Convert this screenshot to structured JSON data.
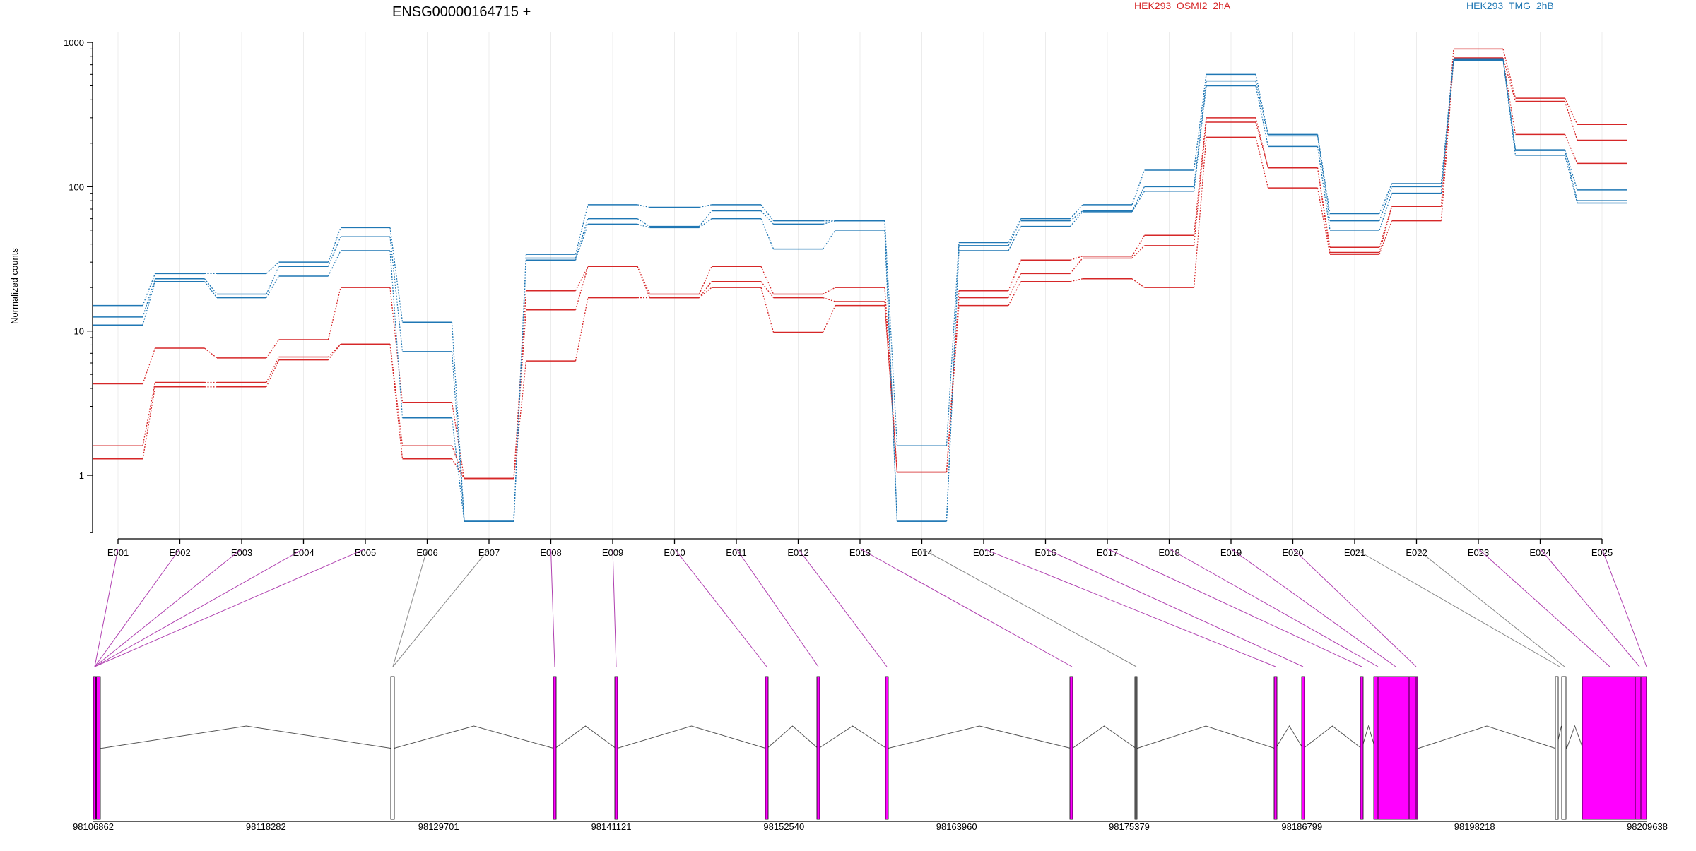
{
  "title": "ENSG00000164715 +",
  "legend": [
    {
      "label": "HEK293_OSMI2_2hA",
      "color": "#d62728"
    },
    {
      "label": "HEK293_TMG_2hB",
      "color": "#1f77b4"
    }
  ],
  "colors": {
    "highlight": "#ff00ff",
    "highlight_edge": "#b000b0",
    "connector_sig": "#b040b0",
    "connector": "#888888"
  },
  "chart_data": {
    "type": "line",
    "ylabel": "Normalized counts",
    "yscale": "log",
    "ylim": [
      0.4,
      1000
    ],
    "yticks": [
      {
        "value": 1,
        "label": "1"
      },
      {
        "value": 10,
        "label": "10"
      },
      {
        "value": 100,
        "label": "100"
      },
      {
        "value": 1000,
        "label": "1000"
      }
    ],
    "categories": [
      "E001",
      "E002",
      "E003",
      "E004",
      "E005",
      "E006",
      "E007",
      "E008",
      "E009",
      "E010",
      "E011",
      "E012",
      "E013",
      "E014",
      "E015",
      "E016",
      "E017",
      "E018",
      "E019",
      "E020",
      "E021",
      "E022",
      "E023",
      "E024",
      "E025"
    ],
    "series": [
      {
        "group": "HEK293_OSMI2_2hA",
        "color": "#d62728",
        "values": [
          4.3,
          7.6,
          6.5,
          8.7,
          20,
          3.2,
          0.95,
          19,
          28,
          18,
          28,
          18,
          20,
          1.05,
          19,
          31,
          33,
          46,
          300,
          135,
          38,
          73,
          900,
          410,
          270
        ]
      },
      {
        "group": "HEK293_OSMI2_2hA",
        "color": "#d62728",
        "values": [
          1.6,
          4.4,
          4.4,
          6.6,
          8.1,
          1.6,
          0.95,
          14,
          28,
          17,
          22,
          17,
          16,
          1.05,
          17,
          25,
          32,
          39,
          280,
          135,
          35,
          73,
          780,
          390,
          210
        ]
      },
      {
        "group": "HEK293_OSMI2_2hA",
        "color": "#d62728",
        "values": [
          1.3,
          4.1,
          4.1,
          6.3,
          8.1,
          1.3,
          0.95,
          6.2,
          17,
          17,
          20,
          9.8,
          15,
          1.05,
          15,
          22,
          23,
          20,
          220,
          98,
          34,
          58,
          760,
          230,
          145
        ]
      },
      {
        "group": "HEK293_TMG_2hB",
        "color": "#1f77b4",
        "values": [
          15,
          25,
          25,
          30,
          52,
          11.5,
          0.48,
          34,
          75,
          72,
          75,
          58,
          58,
          1.6,
          41,
          60,
          75,
          130,
          600,
          230,
          65,
          105,
          770,
          180,
          95
        ]
      },
      {
        "group": "HEK293_TMG_2hB",
        "color": "#1f77b4",
        "values": [
          12.5,
          23,
          18,
          28,
          45,
          7.2,
          0.48,
          32,
          60,
          53,
          68,
          55,
          58,
          0.48,
          39,
          58,
          68,
          100,
          540,
          225,
          58,
          100,
          760,
          178,
          80
        ]
      },
      {
        "group": "HEK293_TMG_2hB",
        "color": "#1f77b4",
        "values": [
          11,
          22,
          17,
          24,
          36,
          2.5,
          0.48,
          31,
          55,
          52,
          60,
          37,
          50,
          0.48,
          36,
          53,
          67,
          93,
          500,
          190,
          50,
          90,
          750,
          165,
          77
        ]
      }
    ]
  },
  "gene_model": {
    "coordinate_labels": [
      "98106862",
      "98118282",
      "98129701",
      "98141121",
      "98152540",
      "98163960",
      "98175379",
      "98186799",
      "98198218",
      "98209638"
    ],
    "exon_mapping": [
      {
        "exon": "E001",
        "significant": true
      },
      {
        "exon": "E002",
        "significant": true
      },
      {
        "exon": "E003",
        "significant": true
      },
      {
        "exon": "E004",
        "significant": true
      },
      {
        "exon": "E005",
        "significant": true
      },
      {
        "exon": "E006",
        "significant": false
      },
      {
        "exon": "E007",
        "significant": false
      },
      {
        "exon": "E008",
        "significant": true
      },
      {
        "exon": "E009",
        "significant": true
      },
      {
        "exon": "E010",
        "significant": true
      },
      {
        "exon": "E011",
        "significant": true
      },
      {
        "exon": "E012",
        "significant": true
      },
      {
        "exon": "E013",
        "significant": true
      },
      {
        "exon": "E014",
        "significant": false
      },
      {
        "exon": "E015",
        "significant": true
      },
      {
        "exon": "E016",
        "significant": true
      },
      {
        "exon": "E017",
        "significant": true
      },
      {
        "exon": "E018",
        "significant": true
      },
      {
        "exon": "E019",
        "significant": true
      },
      {
        "exon": "E020",
        "significant": true
      },
      {
        "exon": "E021",
        "significant": false
      },
      {
        "exon": "E022",
        "significant": false
      },
      {
        "exon": "E023",
        "significant": true
      },
      {
        "exon": "E024",
        "significant": true
      },
      {
        "exon": "E025",
        "significant": true
      }
    ]
  }
}
